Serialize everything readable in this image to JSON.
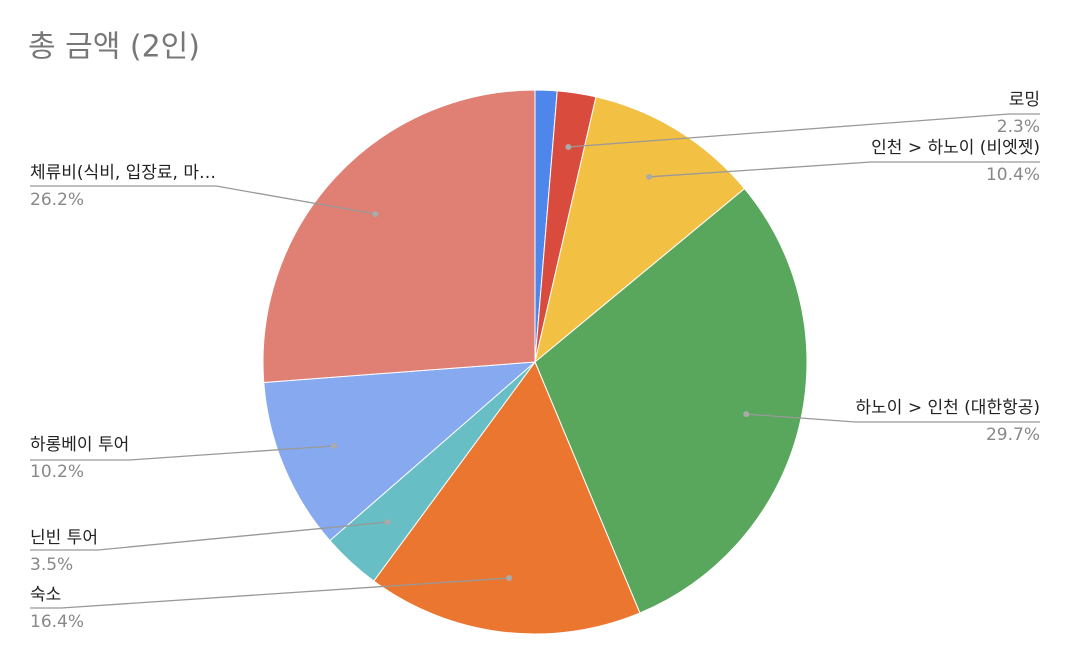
{
  "chart_data": {
    "type": "pie",
    "title": "총 금액 (2인)",
    "categories": [
      null,
      "로밍",
      "인천 > 하노이 (비엣젯)",
      "하노이 > 인천 (대한항공)",
      "숙소",
      "닌빈 투어",
      "하롱베이 투어",
      "체류비(식비, 입장료, 마…"
    ],
    "values": [
      1.3,
      2.3,
      10.4,
      29.7,
      16.4,
      3.5,
      10.2,
      26.2
    ],
    "value_labels": [
      null,
      "2.3%",
      "10.4%",
      "29.7%",
      "16.4%",
      "3.5%",
      "10.2%",
      "26.2%"
    ],
    "colors": [
      "#4f86ec",
      "#d94c3d",
      "#f2c043",
      "#58a75c",
      "#eb7630",
      "#67bec4",
      "#86a9ef",
      "#e07f73"
    ]
  }
}
